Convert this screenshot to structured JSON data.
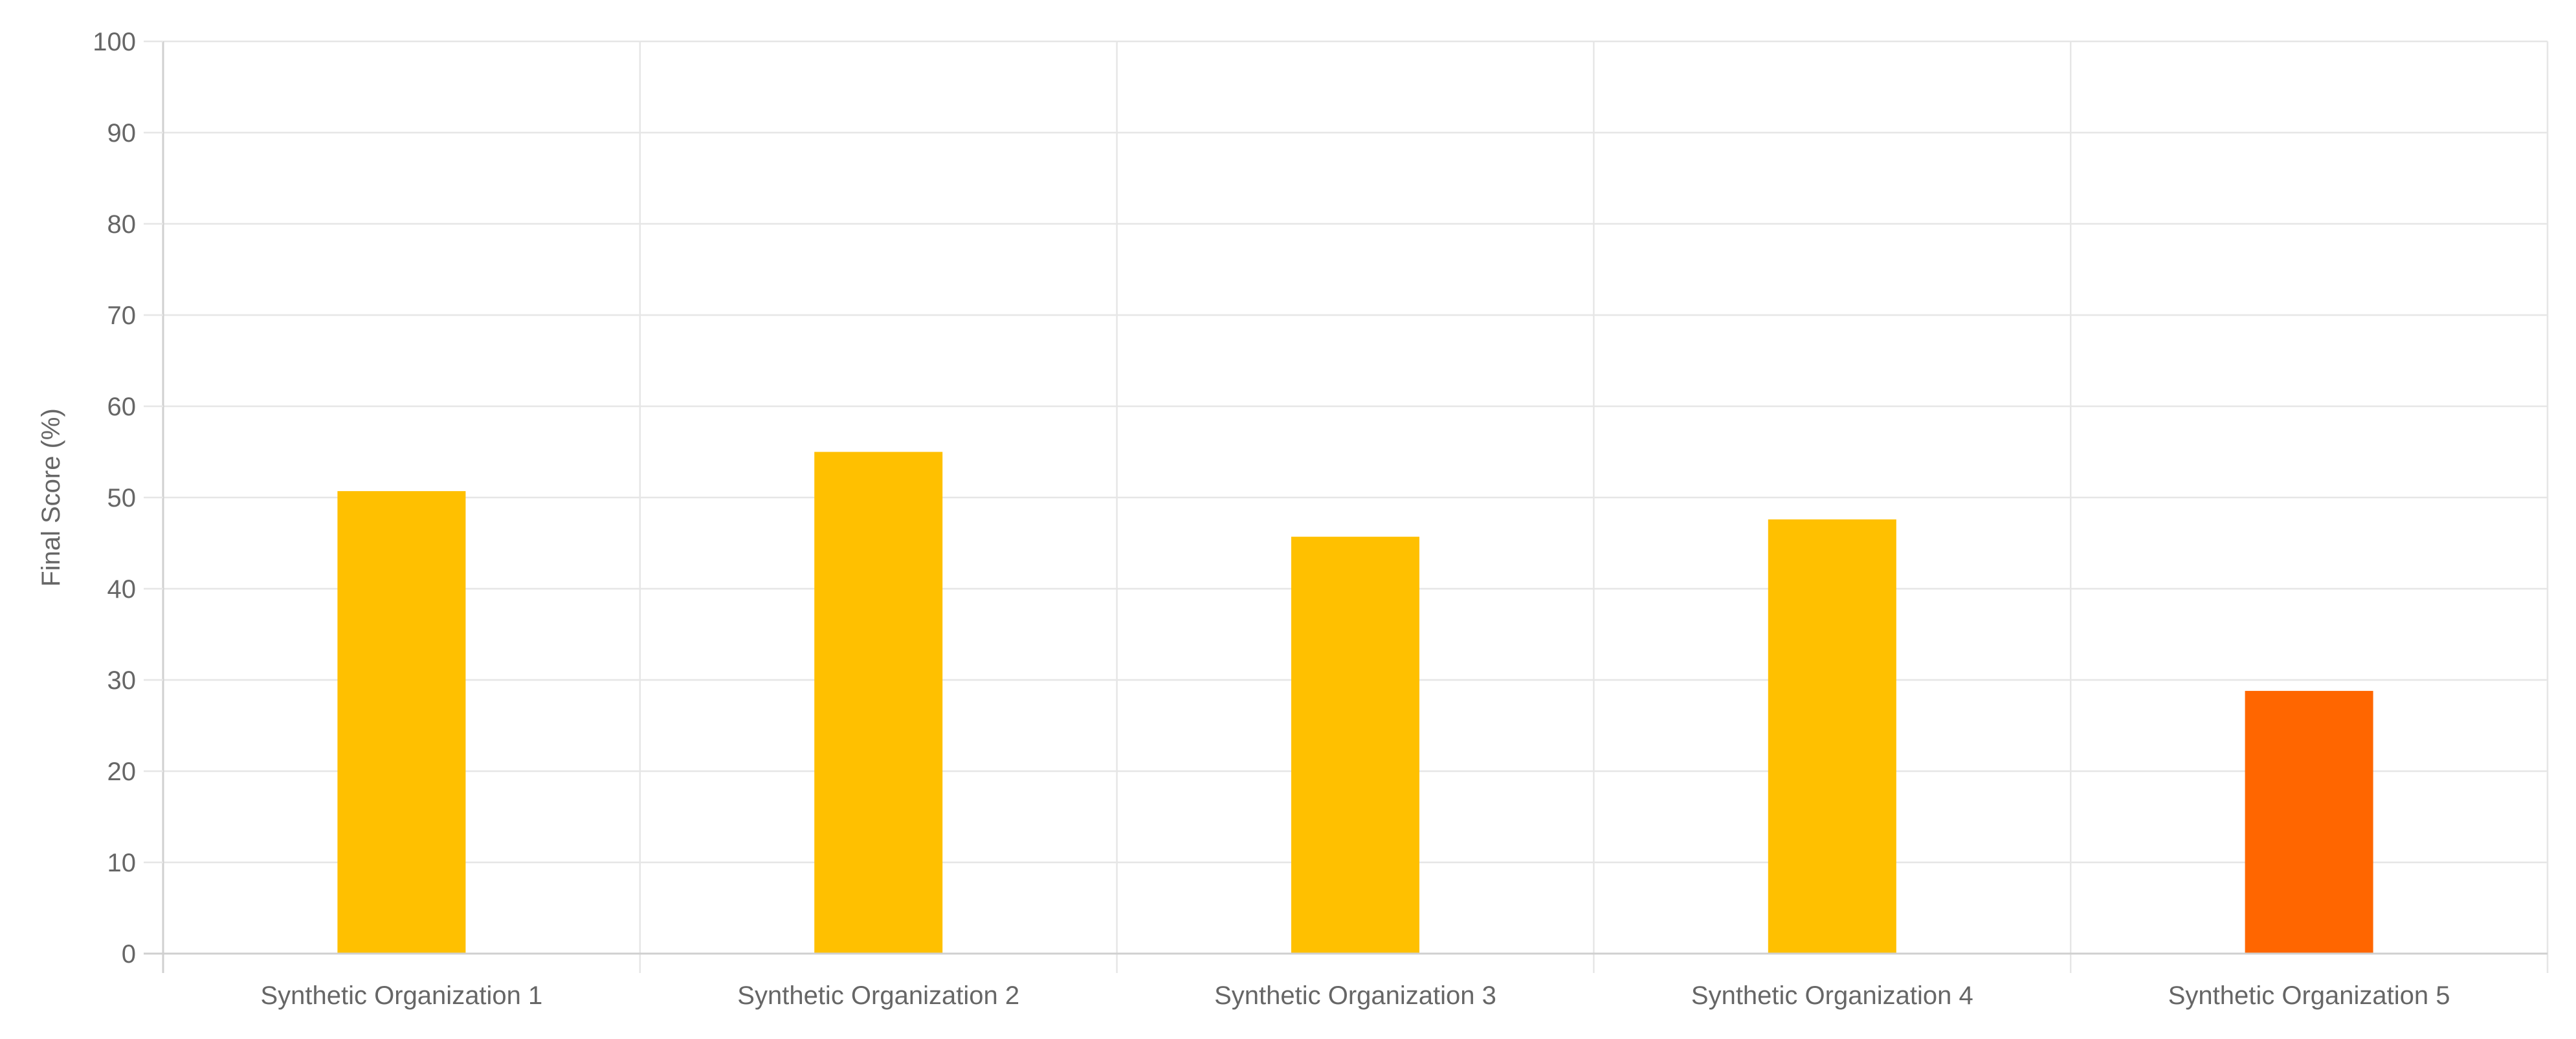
{
  "chart_data": {
    "type": "bar",
    "title": "",
    "xlabel": "",
    "ylabel": "Final Score (%)",
    "categories": [
      "Synthetic Organization 1",
      "Synthetic Organization 2",
      "Synthetic Organization 3",
      "Synthetic Organization 4",
      "Synthetic Organization 5"
    ],
    "values": [
      50.7,
      55.0,
      45.7,
      47.6,
      28.8
    ],
    "bar_colors": [
      "#FFC000",
      "#FFC000",
      "#FFC000",
      "#FFC000",
      "#FF6600"
    ],
    "ylim": [
      0,
      100
    ],
    "yticks": [
      0,
      10,
      20,
      30,
      40,
      50,
      60,
      70,
      80,
      90,
      100
    ],
    "grid": true,
    "legend": "none"
  }
}
